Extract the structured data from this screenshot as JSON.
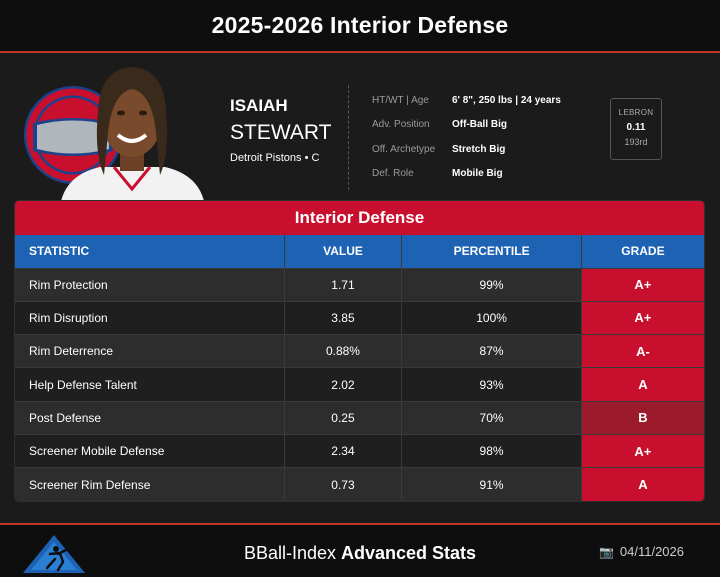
{
  "header": {
    "title": "2025-2026 Interior Defense"
  },
  "player": {
    "first_name": "ISAIAH",
    "last_name": "STEWART",
    "team_position": "Detroit Pistons • C"
  },
  "info": [
    {
      "label": "HT/WT | Age",
      "value": "6' 8\", 250 lbs | 24 years"
    },
    {
      "label": "Adv. Position",
      "value": "Off-Ball Big"
    },
    {
      "label": "Off. Archetype",
      "value": "Stretch Big"
    },
    {
      "label": "Def. Role",
      "value": "Mobile Big"
    }
  ],
  "lebron": {
    "label": "LEBRON",
    "value": "0.11",
    "rank": "193rd"
  },
  "table": {
    "title": "Interior Defense",
    "columns": [
      "STATISTIC",
      "VALUE",
      "PERCENTILE",
      "GRADE"
    ],
    "rows": [
      {
        "statistic": "Rim Protection",
        "value": "1.71",
        "percentile": "99%",
        "grade": "A+",
        "grade_color": "#c8102e"
      },
      {
        "statistic": "Rim Disruption",
        "value": "3.85",
        "percentile": "100%",
        "grade": "A+",
        "grade_color": "#c8102e"
      },
      {
        "statistic": "Rim Deterrence",
        "value": "0.88%",
        "percentile": "87%",
        "grade": "A-",
        "grade_color": "#c8102e"
      },
      {
        "statistic": "Help Defense Talent",
        "value": "2.02",
        "percentile": "93%",
        "grade": "A",
        "grade_color": "#c8102e"
      },
      {
        "statistic": "Post Defense",
        "value": "0.25",
        "percentile": "70%",
        "grade": "B",
        "grade_color": "#9b1a2c"
      },
      {
        "statistic": "Screener Mobile Defense",
        "value": "2.34",
        "percentile": "98%",
        "grade": "A+",
        "grade_color": "#c8102e"
      },
      {
        "statistic": "Screener Rim Defense",
        "value": "0.73",
        "percentile": "91%",
        "grade": "A",
        "grade_color": "#c8102e"
      }
    ]
  },
  "footer": {
    "brand_prefix": "BBall-Index ",
    "brand_bold": "Advanced Stats",
    "date": "04/11/2026",
    "date_icon": "camera-icon"
  },
  "colors": {
    "accent_red": "#c8102e",
    "header_blue": "#1d62b3"
  }
}
